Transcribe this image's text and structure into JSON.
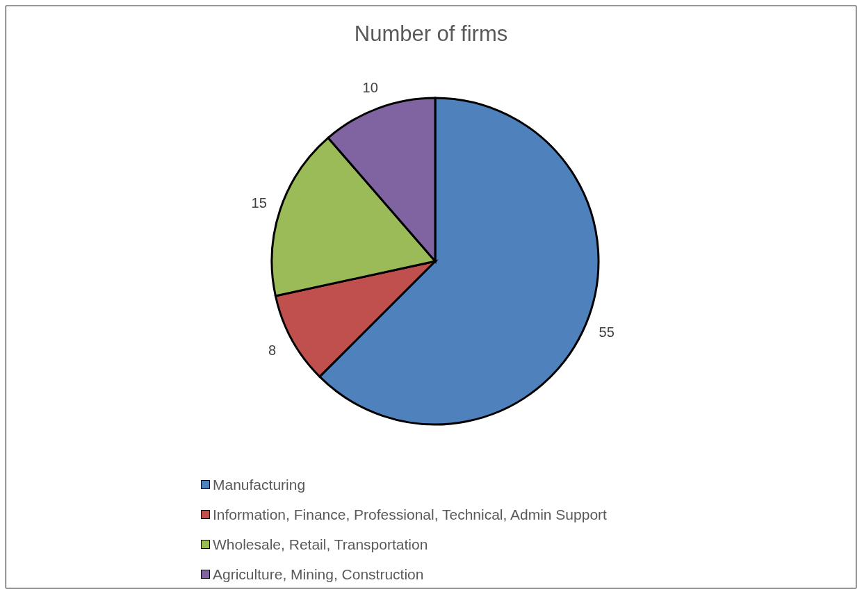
{
  "chart_data": {
    "type": "pie",
    "title": "Number of firms",
    "categories": [
      "Manufacturing",
      "Information, Finance, Professional, Technical, Admin Support",
      "Wholesale, Retail, Transportation",
      "Agriculture, Mining, Construction"
    ],
    "values": [
      55,
      8,
      15,
      10
    ],
    "colors": [
      "#4f81bd",
      "#c0504d",
      "#9bbb59",
      "#8064a2"
    ],
    "data_labels": true,
    "legend": "bottom"
  }
}
